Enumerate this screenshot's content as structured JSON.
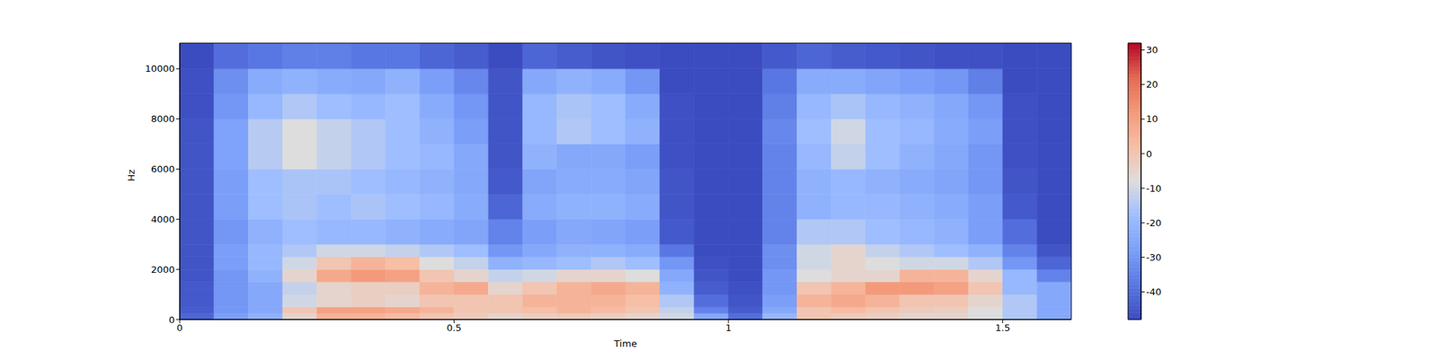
{
  "chart_data": {
    "type": "heatmap",
    "x_label": "Time",
    "y_label": "Hz",
    "xlim": [
      0,
      1.625
    ],
    "ylim": [
      0,
      11025
    ],
    "xticks": [
      0,
      0.5,
      1,
      1.5
    ],
    "yticks": [
      0,
      2000,
      4000,
      6000,
      8000,
      10000
    ],
    "x_edges": [
      0,
      0.0625,
      0.125,
      0.1875,
      0.25,
      0.3125,
      0.375,
      0.4375,
      0.5,
      0.5625,
      0.625,
      0.6875,
      0.75,
      0.8125,
      0.875,
      0.9375,
      1,
      1.0625,
      1.125,
      1.1875,
      1.25,
      1.3125,
      1.375,
      1.4375,
      1.5,
      1.5625,
      1.625
    ],
    "y_edges": [
      0,
      250,
      500,
      1000,
      1500,
      2000,
      2500,
      3000,
      4000,
      5000,
      6000,
      7000,
      8000,
      9000,
      10000,
      11025
    ],
    "z": [
      [
        -42,
        -44,
        -45,
        -45,
        -46,
        -46,
        -46,
        -46,
        -46,
        -46,
        -46,
        -46,
        -47,
        -47,
        -48
      ],
      [
        -28,
        -30,
        -30,
        -30,
        -30,
        -28,
        -28,
        -30,
        -28,
        -28,
        -27,
        -27,
        -30,
        -32,
        -40
      ],
      [
        -22,
        -25,
        -25,
        -25,
        -22,
        -20,
        -20,
        -22,
        -18,
        -18,
        -14,
        -14,
        -20,
        -24,
        -38
      ],
      [
        -5,
        0,
        -10,
        -12,
        -5,
        -10,
        -15,
        -18,
        -16,
        -16,
        -8,
        -8,
        -15,
        -22,
        -36
      ],
      [
        5,
        10,
        -5,
        -5,
        8,
        0,
        -10,
        -20,
        -18,
        -16,
        -12,
        -12,
        -18,
        -24,
        -36
      ],
      [
        5,
        10,
        -3,
        -3,
        12,
        5,
        -10,
        -20,
        -16,
        -18,
        -15,
        -15,
        -20,
        -25,
        -38
      ],
      [
        3,
        8,
        -5,
        -3,
        10,
        2,
        -12,
        -22,
        -18,
        -20,
        -18,
        -18,
        -18,
        -22,
        -38
      ],
      [
        0,
        5,
        0,
        5,
        0,
        -8,
        -15,
        -24,
        -20,
        -22,
        -20,
        -22,
        -24,
        -28,
        -42
      ],
      [
        -2,
        0,
        0,
        8,
        -5,
        -12,
        -18,
        -26,
        -24,
        -25,
        -25,
        -28,
        -30,
        -34,
        -44
      ],
      [
        -5,
        0,
        0,
        -5,
        -12,
        -22,
        -30,
        -35,
        -42,
        -45,
        -46,
        -46,
        -46,
        -46,
        -48
      ],
      [
        -3,
        2,
        5,
        0,
        -10,
        -20,
        -25,
        -28,
        -24,
        -26,
        -22,
        -20,
        -20,
        -25,
        -42
      ],
      [
        -2,
        5,
        5,
        5,
        -5,
        -18,
        -22,
        -25,
        -22,
        -24,
        -25,
        -15,
        -16,
        -22,
        -44
      ],
      [
        -3,
        3,
        5,
        8,
        -5,
        -15,
        -22,
        -26,
        -22,
        -24,
        -25,
        -18,
        -18,
        -24,
        -46
      ],
      [
        -5,
        0,
        2,
        5,
        -8,
        -18,
        -24,
        -28,
        -24,
        -26,
        -28,
        -22,
        -24,
        -30,
        -47
      ],
      [
        -10,
        -12,
        -15,
        -22,
        -25,
        -30,
        -38,
        -45,
        -46,
        -46,
        -47,
        -47,
        -47,
        -48,
        -48
      ],
      [
        -25,
        -35,
        -40,
        -44,
        -46,
        -47,
        -48,
        -48,
        -48,
        -48,
        -48,
        -48,
        -48,
        -48,
        -48
      ],
      [
        -40,
        -44,
        -46,
        -47,
        -48,
        -48,
        -48,
        -48,
        -48,
        -48,
        -48,
        -48,
        -48,
        -48,
        -48
      ],
      [
        -20,
        -25,
        -28,
        -30,
        -30,
        -32,
        -32,
        -35,
        -35,
        -35,
        -35,
        -34,
        -36,
        -38,
        -45
      ],
      [
        0,
        0,
        5,
        0,
        -8,
        -10,
        -10,
        -15,
        -22,
        -22,
        -20,
        -18,
        -20,
        -24,
        -42
      ],
      [
        -2,
        3,
        8,
        5,
        -5,
        -5,
        -5,
        -15,
        -20,
        -20,
        -12,
        -10,
        -16,
        -24,
        -44
      ],
      [
        -3,
        0,
        5,
        12,
        -5,
        -8,
        -12,
        -18,
        -20,
        -22,
        -18,
        -18,
        -20,
        -26,
        -45
      ],
      [
        -5,
        -2,
        0,
        12,
        5,
        -10,
        -15,
        -20,
        -22,
        -24,
        -22,
        -20,
        -22,
        -28,
        -46
      ],
      [
        -5,
        -3,
        0,
        10,
        5,
        -10,
        -18,
        -22,
        -24,
        -26,
        -25,
        -24,
        -25,
        -30,
        -47
      ],
      [
        -8,
        -8,
        -5,
        0,
        -5,
        -15,
        -22,
        -28,
        -28,
        -30,
        -30,
        -28,
        -30,
        -36,
        -47
      ],
      [
        -15,
        -15,
        -15,
        -20,
        -20,
        -30,
        -35,
        -40,
        -45,
        -46,
        -47,
        -47,
        -47,
        -48,
        -48
      ],
      [
        -25,
        -25,
        -25,
        -25,
        -35,
        -42,
        -46,
        -48,
        -48,
        -48,
        -48,
        -48,
        -48,
        -48,
        -48
      ]
    ],
    "colorbar": {
      "range": [
        -48,
        32
      ],
      "ticks": [
        -40,
        -30,
        -20,
        -10,
        0,
        10,
        20,
        30
      ]
    }
  }
}
